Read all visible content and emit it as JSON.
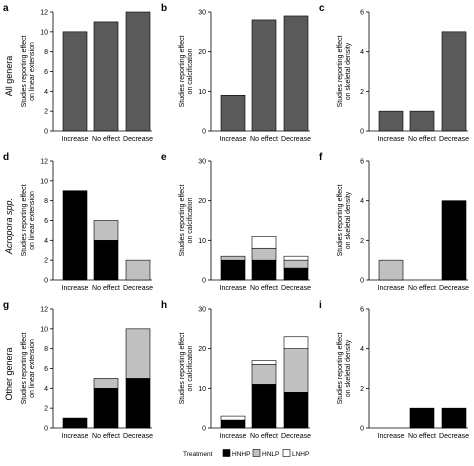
{
  "chart_data": [
    {
      "panel": "a",
      "row": 0,
      "col": 0,
      "type": "bar",
      "ymax": 12,
      "yticks": [
        0,
        2,
        4,
        6,
        8,
        10,
        12
      ],
      "ylabel": [
        "Studies reporting effect",
        "on linear extension"
      ],
      "categories": [
        "Increase",
        "No effect",
        "Decrease"
      ],
      "series": [
        {
          "values": [
            10,
            11,
            12
          ]
        }
      ]
    },
    {
      "panel": "b",
      "row": 0,
      "col": 1,
      "type": "bar",
      "ymax": 30,
      "yticks": [
        0,
        10,
        20,
        30
      ],
      "ylabel": [
        "Studies reporting effect",
        "on calcification"
      ],
      "categories": [
        "Increase",
        "No effect",
        "Decrease"
      ],
      "series": [
        {
          "values": [
            9,
            28,
            29
          ]
        }
      ]
    },
    {
      "panel": "c",
      "row": 0,
      "col": 2,
      "type": "bar",
      "ymax": 6,
      "yticks": [
        0,
        2,
        4,
        6
      ],
      "ylabel": [
        "Studies reporting effect",
        "on skeletal density"
      ],
      "categories": [
        "Increase",
        "No effect",
        "Decrease"
      ],
      "series": [
        {
          "values": [
            1,
            1,
            5
          ]
        }
      ]
    },
    {
      "panel": "d",
      "row": 1,
      "col": 0,
      "type": "stacked_bar",
      "ymax": 12,
      "yticks": [
        0,
        2,
        4,
        6,
        8,
        10,
        12
      ],
      "ylabel": [
        "Studies reporting effect",
        "on linear extension"
      ],
      "categories": [
        "Increase",
        "No effect",
        "Decrease"
      ],
      "series": [
        {
          "name": "HNHP",
          "values": [
            9,
            4,
            0
          ]
        },
        {
          "name": "HNLP",
          "values": [
            0,
            2,
            2
          ]
        },
        {
          "name": "LNHP",
          "values": [
            0,
            0,
            0
          ]
        }
      ]
    },
    {
      "panel": "e",
      "row": 1,
      "col": 1,
      "type": "stacked_bar",
      "ymax": 30,
      "yticks": [
        0,
        10,
        20,
        30
      ],
      "ylabel": [
        "Studies reporting effect",
        "on calcification"
      ],
      "categories": [
        "Increase",
        "No effect",
        "Decrease"
      ],
      "series": [
        {
          "name": "HNHP",
          "values": [
            5,
            5,
            3
          ]
        },
        {
          "name": "HNLP",
          "values": [
            1,
            3,
            2
          ]
        },
        {
          "name": "LNHP",
          "values": [
            0,
            3,
            1
          ]
        }
      ]
    },
    {
      "panel": "f",
      "row": 1,
      "col": 2,
      "type": "stacked_bar",
      "ymax": 6,
      "yticks": [
        0,
        2,
        4,
        6
      ],
      "ylabel": [
        "Studies reporting effect",
        "on skeletal density"
      ],
      "categories": [
        "Increase",
        "No effect",
        "Decrease"
      ],
      "series": [
        {
          "name": "HNHP",
          "values": [
            0,
            0,
            4
          ]
        },
        {
          "name": "HNLP",
          "values": [
            1,
            0,
            0
          ]
        },
        {
          "name": "LNHP",
          "values": [
            0,
            0,
            0
          ]
        }
      ]
    },
    {
      "panel": "g",
      "row": 2,
      "col": 0,
      "type": "stacked_bar",
      "ymax": 12,
      "yticks": [
        0,
        2,
        4,
        6,
        8,
        10,
        12
      ],
      "ylabel": [
        "Studies reporting effect",
        "on linear extension"
      ],
      "categories": [
        "Increase",
        "No effect",
        "Decrease"
      ],
      "series": [
        {
          "name": "HNHP",
          "values": [
            1,
            4,
            5
          ]
        },
        {
          "name": "HNLP",
          "values": [
            0,
            1,
            5
          ]
        },
        {
          "name": "LNHP",
          "values": [
            0,
            0,
            0
          ]
        }
      ]
    },
    {
      "panel": "h",
      "row": 2,
      "col": 1,
      "type": "stacked_bar",
      "ymax": 30,
      "yticks": [
        0,
        10,
        20,
        30
      ],
      "ylabel": [
        "Studies reporting effect",
        "on calcification"
      ],
      "categories": [
        "Increase",
        "No effect",
        "Decrease"
      ],
      "series": [
        {
          "name": "HNHP",
          "values": [
            2,
            11,
            9
          ]
        },
        {
          "name": "HNLP",
          "values": [
            0,
            5,
            11
          ]
        },
        {
          "name": "LNHP",
          "values": [
            1,
            1,
            3
          ]
        }
      ]
    },
    {
      "panel": "i",
      "row": 2,
      "col": 2,
      "type": "stacked_bar",
      "ymax": 6,
      "yticks": [
        0,
        2,
        4,
        6
      ],
      "ylabel": [
        "Studies reporting effect",
        "on skeletal density"
      ],
      "categories": [
        "Increase",
        "No effect",
        "Decrease"
      ],
      "series": [
        {
          "name": "HNHP",
          "values": [
            0,
            1,
            1
          ]
        },
        {
          "name": "HNLP",
          "values": [
            0,
            0,
            0
          ]
        },
        {
          "name": "LNHP",
          "values": [
            0,
            0,
            0
          ]
        }
      ]
    }
  ],
  "row_labels": [
    "All genera",
    "Acropora spp.",
    "Other genera"
  ],
  "legend": {
    "title": "Treatment",
    "items": [
      {
        "name": "HNHP",
        "color": "#000000"
      },
      {
        "name": "HNLP",
        "color": "#c0c0c0"
      },
      {
        "name": "LNHP",
        "color": "#ffffff"
      }
    ]
  },
  "colors": {
    "single_series": "#5a5a5a",
    "axis": "#000000"
  }
}
